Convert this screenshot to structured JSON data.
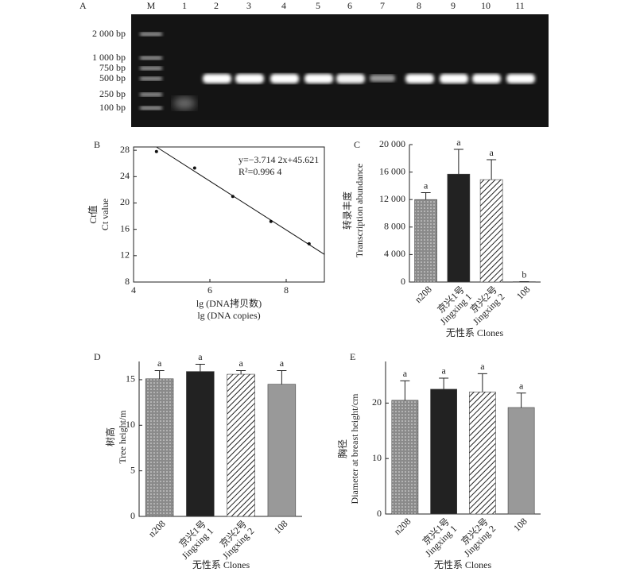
{
  "gel": {
    "panel": "A",
    "lanes": [
      "M",
      "1",
      "2",
      "3",
      "4",
      "5",
      "6",
      "7",
      "8",
      "9",
      "10",
      "11"
    ],
    "markers": [
      "2 000 bp",
      "1 000 bp",
      "750 bp",
      "500 bp",
      "250 bp",
      "100 bp"
    ]
  },
  "chart_data": [
    {
      "type": "scatter",
      "panel": "B",
      "x": [
        4.6,
        5.6,
        6.6,
        7.6,
        8.6
      ],
      "y": [
        27.8,
        25.3,
        21.0,
        17.2,
        13.8
      ],
      "fit": {
        "x": [
          4.6,
          9
        ],
        "y": [
          28.5,
          12.2
        ]
      },
      "equation": "y=−3.714 2x+45.621",
      "r2": "R²=0.996 4",
      "xlabel": [
        "lg (DNA拷贝数)",
        "lg (DNA copies)"
      ],
      "ylabel": [
        "Ct值",
        "Ct value"
      ],
      "xlim": [
        4,
        9
      ],
      "ylim": [
        8,
        28.5
      ],
      "xticks": [
        4,
        6,
        8
      ],
      "yticks": [
        8,
        12,
        16,
        20,
        24,
        28
      ],
      "color": "#111",
      "frame": "box"
    },
    {
      "type": "bar",
      "panel": "C",
      "categories": [
        [
          "n208"
        ],
        [
          "京兴1号",
          "Jingxing 1"
        ],
        [
          "京兴2号",
          "Jingxing 2"
        ],
        [
          "108"
        ]
      ],
      "values": [
        12000,
        15700,
        14900,
        50
      ],
      "errors": [
        1000,
        3600,
        2900,
        0
      ],
      "letters": [
        "a",
        "a",
        "a",
        "b"
      ],
      "colors": [
        "#8a8a8a",
        "#222222",
        "#ffffff",
        "#999999"
      ],
      "patterns": [
        "dots",
        "solid",
        "hatch",
        "solid"
      ],
      "xlabel": "无性系 Clones",
      "ylabel": [
        "转录丰度",
        "Transcription abundance"
      ],
      "ylim": [
        0,
        20000
      ],
      "yticks": [
        0,
        {
          "value": 4000,
          "label": "4 000"
        },
        {
          "value": 8000,
          "label": "8 000"
        },
        {
          "value": 12000,
          "label": "12 000"
        },
        {
          "value": 16000,
          "label": "16 000"
        },
        {
          "value": 20000,
          "label": "20 000"
        }
      ],
      "frame": "axes"
    },
    {
      "type": "bar",
      "panel": "D",
      "categories": [
        [
          "n208"
        ],
        [
          "京兴1号",
          "Jingxing 1"
        ],
        [
          "京兴2号",
          "Jingxing 2"
        ],
        [
          "108"
        ]
      ],
      "values": [
        15.1,
        15.9,
        15.6,
        14.5
      ],
      "errors": [
        0.9,
        0.8,
        0.4,
        1.5
      ],
      "letters": [
        "a",
        "a",
        "a",
        "a"
      ],
      "colors": [
        "#8a8a8a",
        "#222222",
        "#ffffff",
        "#999999"
      ],
      "patterns": [
        "dots",
        "solid",
        "hatch",
        "solid"
      ],
      "xlabel": "无性系 Clones",
      "ylabel": [
        "树高",
        "Tree height/m"
      ],
      "ylim": [
        0,
        17
      ],
      "yticks": [
        0,
        5,
        10,
        15
      ],
      "frame": "axes"
    },
    {
      "type": "bar",
      "panel": "E",
      "categories": [
        [
          "n208"
        ],
        [
          "京兴1号",
          "Jingxing 1"
        ],
        [
          "京兴2号",
          "Jingxing 2"
        ],
        [
          "108"
        ]
      ],
      "values": [
        20.5,
        22.5,
        22,
        19.2
      ],
      "errors": [
        3.5,
        2,
        3.3,
        2.6
      ],
      "letters": [
        "a",
        "a",
        "a",
        "a"
      ],
      "colors": [
        "#8a8a8a",
        "#222222",
        "#ffffff",
        "#999999"
      ],
      "patterns": [
        "dots",
        "solid",
        "hatch",
        "solid"
      ],
      "xlabel": "无性系 Clones",
      "ylabel": [
        "胸径",
        "Diameter at breast height/cm"
      ],
      "ylim": [
        0,
        27.5
      ],
      "yticks": [
        0,
        10,
        20
      ],
      "frame": "axes"
    }
  ]
}
